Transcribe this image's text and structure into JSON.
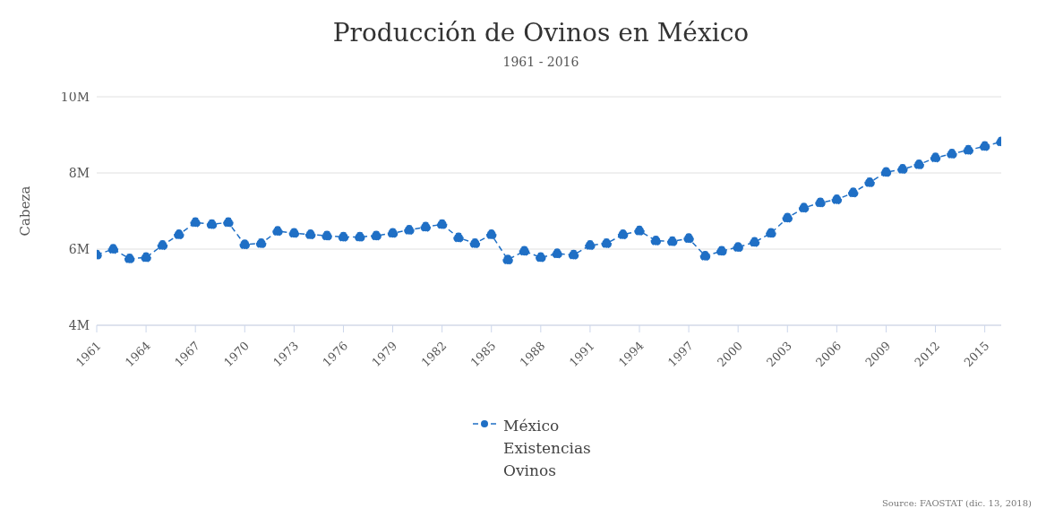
{
  "chart_data": {
    "type": "line",
    "title": "Producción de Ovinos en México",
    "subtitle": "1961 - 2016",
    "ylabel": "Cabeza",
    "x": [
      1961,
      1962,
      1963,
      1964,
      1965,
      1966,
      1967,
      1968,
      1969,
      1970,
      1971,
      1972,
      1973,
      1974,
      1975,
      1976,
      1977,
      1978,
      1979,
      1980,
      1981,
      1982,
      1983,
      1984,
      1985,
      1986,
      1987,
      1988,
      1989,
      1990,
      1991,
      1992,
      1993,
      1994,
      1995,
      1996,
      1997,
      1998,
      1999,
      2000,
      2001,
      2002,
      2003,
      2004,
      2005,
      2006,
      2007,
      2008,
      2009,
      2010,
      2011,
      2012,
      2013,
      2014,
      2015,
      2016
    ],
    "series": [
      {
        "name": "México Existencias Ovinos",
        "color": "#1f6fc5",
        "values": [
          5.85,
          6.0,
          5.75,
          5.78,
          6.1,
          6.38,
          6.7,
          6.65,
          6.7,
          6.12,
          6.15,
          6.47,
          6.42,
          6.38,
          6.35,
          6.32,
          6.32,
          6.35,
          6.42,
          6.5,
          6.58,
          6.65,
          6.3,
          6.15,
          6.38,
          5.72,
          5.95,
          5.78,
          5.88,
          5.85,
          6.1,
          6.15,
          6.38,
          6.48,
          6.22,
          6.2,
          6.28,
          5.82,
          5.95,
          6.05,
          6.18,
          6.42,
          6.82,
          7.08,
          7.22,
          7.3,
          7.48,
          7.75,
          8.02,
          8.1,
          8.22,
          8.4,
          8.5,
          8.6,
          8.7,
          8.82
        ]
      }
    ],
    "xlim": [
      1961,
      2016
    ],
    "xticks": [
      1961,
      1964,
      1967,
      1970,
      1973,
      1976,
      1979,
      1982,
      1985,
      1988,
      1991,
      1994,
      1997,
      2000,
      2003,
      2006,
      2009,
      2012,
      2015
    ],
    "ylim": [
      4,
      10
    ],
    "yticks": [
      {
        "value": 4,
        "label": "4M"
      },
      {
        "value": 6,
        "label": "6M"
      },
      {
        "value": 8,
        "label": "8M"
      },
      {
        "value": 10,
        "label": "10M"
      }
    ],
    "grid": "y",
    "legend": "bottom",
    "marker": "circle",
    "line_style": "dashed",
    "annotations": [
      "Source: FAOSTAT (dic. 13, 2018)"
    ]
  }
}
